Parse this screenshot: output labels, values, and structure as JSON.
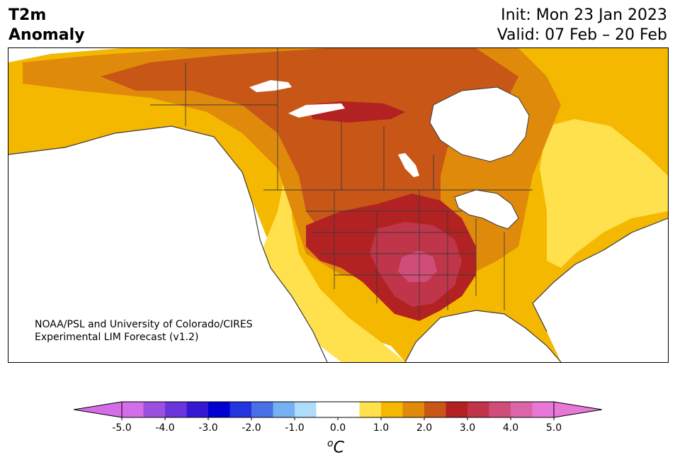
{
  "title": {
    "line1": "T2m",
    "line2": "Anomaly"
  },
  "info": {
    "init": "Init: Mon 23 Jan 2023",
    "valid": "Valid: 07 Feb – 20 Feb"
  },
  "credit": {
    "line1": "NOAA/PSL and University of Colorado/CIRES",
    "line2": "Experimental LIM Forecast (v1.2)"
  },
  "colorbar": {
    "unit_base": "C",
    "unit_super": "o",
    "tick_labels": [
      "-5.0",
      "-4.0",
      "-3.0",
      "-2.0",
      "-1.0",
      "0.0",
      "1.0",
      "2.0",
      "3.0",
      "4.0",
      "5.0"
    ],
    "colors": [
      "#d36ee8",
      "#9b50e0",
      "#6a36dc",
      "#3419d4",
      "#0000d1",
      "#2336dd",
      "#4a70e6",
      "#75b0f0",
      "#aedcfa",
      "#ffffff",
      "#ffffff",
      "#ffe04d",
      "#f4b800",
      "#e08a0c",
      "#c85616",
      "#b22222",
      "#c0354a",
      "#d04d7a",
      "#dc64a8",
      "#e878d8"
    ],
    "extend_low_color": "#d36ee8",
    "extend_high_color": "#e878d8"
  },
  "map_palette": {
    "ocean": "#ffffff",
    "anomaly_0_5": "#ffe04d",
    "anomaly_1_0": "#f4b800",
    "anomaly_1_5": "#e08a0c",
    "anomaly_2_0": "#c85616",
    "anomaly_2_5": "#b22222",
    "anomaly_3_0": "#c0354a",
    "anomaly_3_5": "#d04d7a",
    "border": "#3a3a3a"
  }
}
